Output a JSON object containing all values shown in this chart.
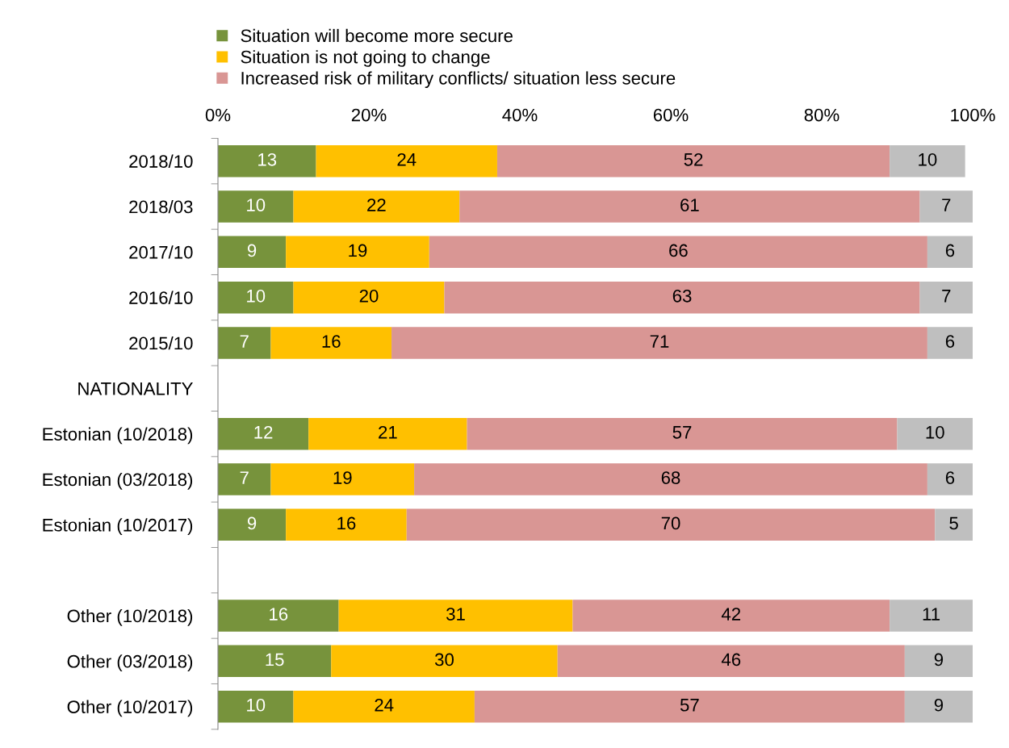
{
  "chart_data": {
    "type": "bar",
    "orientation": "horizontal",
    "stacked": true,
    "data_labels": true,
    "legend": "top",
    "grid": false,
    "categories": [
      "2018/10",
      "2018/03",
      "2017/10",
      "2016/10",
      "2015/10",
      "NATIONALITY",
      "Estonian (10/2018)",
      "Estonian (03/2018)",
      "Estonian (10/2017)",
      null,
      "Other (10/2018)",
      "Other (03/2018)",
      "Other (10/2017)"
    ],
    "xlim": [
      0,
      100
    ],
    "xticks": [
      {
        "value": 0,
        "label": "0%"
      },
      {
        "value": 20,
        "label": "20%"
      },
      {
        "value": 40,
        "label": "40%"
      },
      {
        "value": 60,
        "label": "60%"
      },
      {
        "value": 80,
        "label": "80%"
      },
      {
        "value": 100,
        "label": "100%"
      }
    ],
    "series": [
      {
        "name": "Situation will become more secure",
        "color": "#77933c",
        "values": [
          13,
          10,
          9,
          10,
          7,
          null,
          12,
          7,
          9,
          null,
          16,
          15,
          10
        ]
      },
      {
        "name": "Situation is not going to change",
        "color": "#ffc000",
        "values": [
          24,
          22,
          19,
          20,
          16,
          null,
          21,
          19,
          16,
          null,
          31,
          30,
          24
        ]
      },
      {
        "name": "Increased risk of military conflicts/ situation less secure",
        "color": "#d99694",
        "values": [
          52,
          61,
          66,
          63,
          71,
          null,
          57,
          68,
          70,
          null,
          42,
          46,
          57
        ]
      },
      {
        "color": "#bfbfbf",
        "values": [
          10,
          7,
          6,
          7,
          6,
          null,
          10,
          6,
          5,
          null,
          11,
          9,
          9
        ]
      }
    ]
  }
}
